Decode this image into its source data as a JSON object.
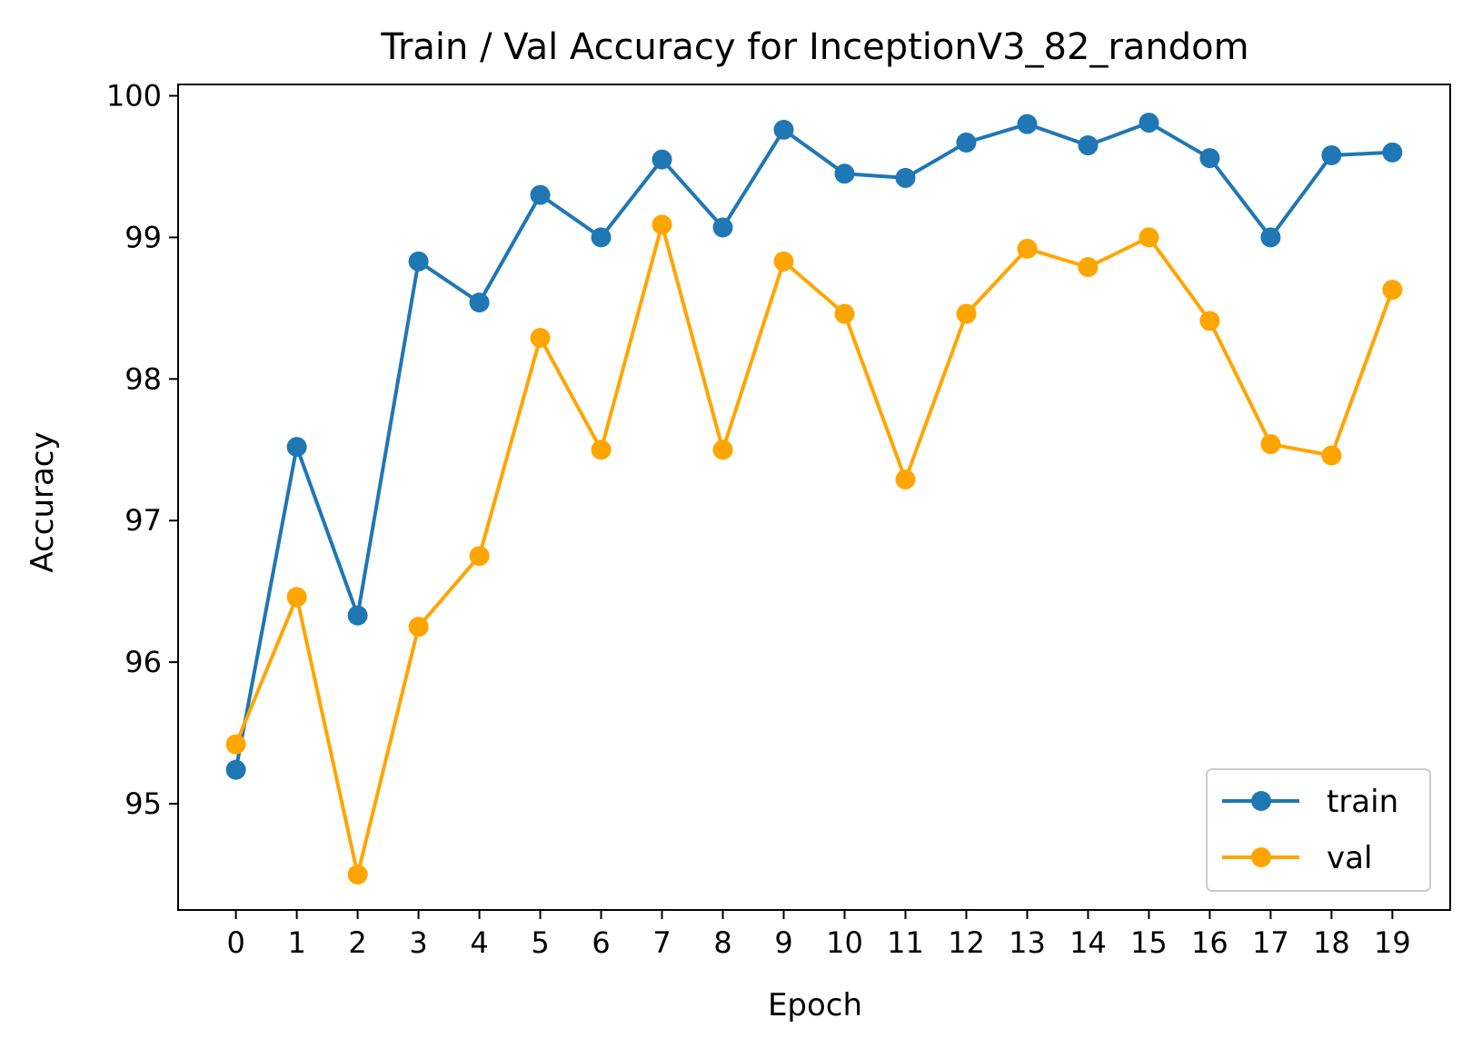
{
  "chart_data": {
    "type": "line",
    "title": "Train / Val Accuracy for InceptionV3_82_random",
    "xlabel": "Epoch",
    "ylabel": "Accuracy",
    "x": [
      0,
      1,
      2,
      3,
      4,
      5,
      6,
      7,
      8,
      9,
      10,
      11,
      12,
      13,
      14,
      15,
      16,
      17,
      18,
      19
    ],
    "xticks": [
      "0",
      "1",
      "2",
      "3",
      "4",
      "5",
      "6",
      "7",
      "8",
      "9",
      "10",
      "11",
      "12",
      "13",
      "14",
      "15",
      "16",
      "17",
      "18",
      "19"
    ],
    "yticks": [
      "95",
      "96",
      "97",
      "98",
      "99",
      "100"
    ],
    "xlim": [
      -0.95,
      19.95
    ],
    "ylim": [
      94.25,
      100.08
    ],
    "grid": false,
    "legend_position": "lower right",
    "series": [
      {
        "name": "train",
        "color": "#1f77b4",
        "marker": "circle",
        "values": [
          95.24,
          97.52,
          96.33,
          98.83,
          98.54,
          99.3,
          99.0,
          99.55,
          99.07,
          99.76,
          99.45,
          99.42,
          99.67,
          99.8,
          99.65,
          99.81,
          99.56,
          99.0,
          99.58,
          99.6
        ]
      },
      {
        "name": "val",
        "color": "#ffa500",
        "marker": "circle",
        "values": [
          95.42,
          96.46,
          94.5,
          96.25,
          96.75,
          98.29,
          97.5,
          99.09,
          97.5,
          98.83,
          98.46,
          97.29,
          98.46,
          98.92,
          98.79,
          99.0,
          98.41,
          97.54,
          97.46,
          98.63
        ]
      }
    ]
  }
}
